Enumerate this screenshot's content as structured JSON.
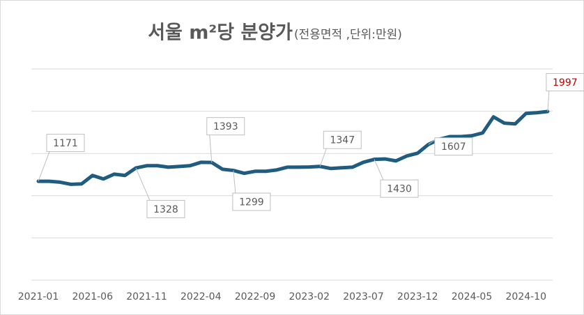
{
  "chart_data": {
    "type": "line",
    "title": "서울 m²당 분양가",
    "subtitle": "(전용면적 ,단위:만원)",
    "categories": [
      "2021-01",
      null,
      null,
      null,
      null,
      "2021-06",
      null,
      null,
      null,
      null,
      "2021-11",
      null,
      null,
      null,
      null,
      "2022-04",
      null,
      null,
      null,
      null,
      "2022-09",
      null,
      null,
      null,
      null,
      "2023-02",
      null,
      null,
      null,
      null,
      "2023-07",
      null,
      null,
      null,
      null,
      "2023-12",
      null,
      null,
      null,
      null,
      "2024-05",
      null,
      null,
      null,
      null,
      "2024-10",
      null,
      null
    ],
    "series": [
      {
        "name": "서울",
        "color": "#1f5c80",
        "values": [
          1171,
          1171,
          1160,
          1135,
          1140,
          1240,
          1198,
          1255,
          1240,
          1328,
          1355,
          1355,
          1338,
          1346,
          1355,
          1395,
          1393,
          1313,
          1299,
          1265,
          1289,
          1289,
          1305,
          1338,
          1338,
          1340,
          1347,
          1322,
          1330,
          1338,
          1396,
          1430,
          1435,
          1412,
          1470,
          1503,
          1607,
          1668,
          1700,
          1700,
          1710,
          1743,
          1933,
          1859,
          1850,
          1974,
          1982,
          1997
        ]
      }
    ],
    "data_labels": [
      0,
      9,
      16,
      18,
      26,
      31,
      36,
      47
    ],
    "label_color": "#595959",
    "highlight_label_color": "#c00000",
    "ylim": [
      0,
      2500
    ],
    "yticks": [
      0,
      500,
      1000,
      1500,
      2000,
      2500
    ],
    "grid": true
  }
}
